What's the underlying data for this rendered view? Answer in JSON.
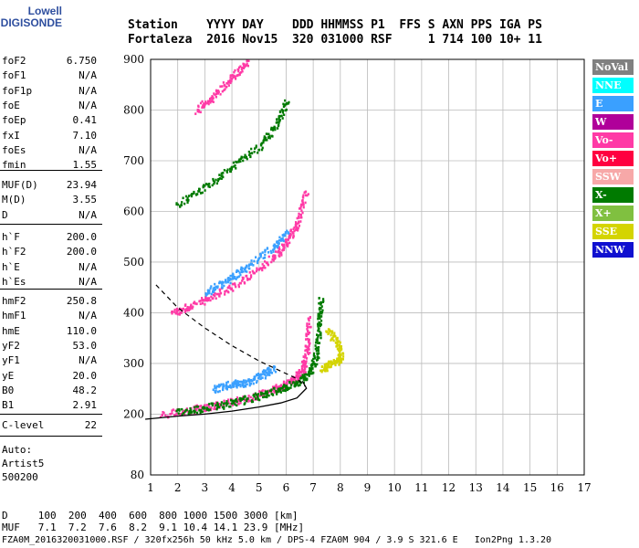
{
  "logo": {
    "line1": "Lowell",
    "line2": "DIGISONDE"
  },
  "header": {
    "line1": "Station    YYYY DAY    DDD HHMMSS P1  FFS S AXN PPS IGA PS",
    "line2": "Fortaleza  2016 Nov15  320 031000 RSF     1 714 100 10+ 11"
  },
  "left_panel": {
    "group1": [
      {
        "k": "foF2",
        "v": "6.750"
      },
      {
        "k": "foF1",
        "v": "N/A"
      },
      {
        "k": "foF1p",
        "v": "N/A"
      },
      {
        "k": "foE",
        "v": "N/A"
      },
      {
        "k": "foEp",
        "v": "0.41"
      },
      {
        "k": "fxI",
        "v": "7.10"
      },
      {
        "k": "foEs",
        "v": "N/A"
      },
      {
        "k": "fmin",
        "v": "1.55"
      }
    ],
    "group2": [
      {
        "k": "MUF(D)",
        "v": "23.94"
      },
      {
        "k": "M(D)",
        "v": "3.55"
      },
      {
        "k": "D",
        "v": "N/A"
      }
    ],
    "group3": [
      {
        "k": "h`F",
        "v": "200.0"
      },
      {
        "k": "h`F2",
        "v": "200.0"
      },
      {
        "k": "h`E",
        "v": "N/A"
      },
      {
        "k": "h`Es",
        "v": "N/A"
      }
    ],
    "group4": [
      {
        "k": "hmF2",
        "v": "250.8"
      },
      {
        "k": "hmF1",
        "v": "N/A"
      },
      {
        "k": "hmE",
        "v": "110.0"
      },
      {
        "k": "yF2",
        "v": "53.0"
      },
      {
        "k": "yF1",
        "v": "N/A"
      },
      {
        "k": "yE",
        "v": "20.0"
      },
      {
        "k": "B0",
        "v": "48.2"
      },
      {
        "k": "B1",
        "v": "2.91"
      }
    ],
    "group5": [
      {
        "k": "C-level",
        "v": "22"
      }
    ],
    "auto": "Auto:\nArtist5\n500200"
  },
  "bottom_table": {
    "d_row": "D     100  200  400  600  800 1000 1500 3000 [km]",
    "muf_row": "MUF   7.1  7.2  7.6  8.2  9.1 10.4 14.1 23.9 [MHz]"
  },
  "footer": "FZA0M_2016320031000.RSF / 320fx256h 50 kHz 5.0 km / DPS-4 FZA0M 904 / 3.9 S 321.6 E   Ion2Png 1.3.20",
  "legend": [
    {
      "label": "NoVal",
      "color": "#808080"
    },
    {
      "label": "NNE",
      "color": "#00ffff"
    },
    {
      "label": "E",
      "color": "#3aa0ff"
    },
    {
      "label": "W",
      "color": "#b0009a"
    },
    {
      "label": "Vo-",
      "color": "#ff3aa6"
    },
    {
      "label": "Vo+",
      "color": "#ff0040"
    },
    {
      "label": "SSW",
      "color": "#f7a8a8"
    },
    {
      "label": "X-",
      "color": "#007a00"
    },
    {
      "label": "X+",
      "color": "#80c040"
    },
    {
      "label": "SSE",
      "color": "#d4d400"
    },
    {
      "label": "NNW",
      "color": "#1010d0"
    }
  ],
  "chart_data": {
    "type": "scatter",
    "xlim": [
      1,
      17
    ],
    "ylim": [
      80,
      900
    ],
    "x_ticks": [
      "1",
      "2",
      "3",
      "4",
      "5",
      "6",
      "7",
      "8",
      "9",
      "10",
      "11",
      "12",
      "13",
      "14",
      "15",
      "16",
      "17"
    ],
    "y_ticks": [
      {
        "v": 80,
        "label": "80"
      },
      {
        "v": 200,
        "label": "200"
      },
      {
        "v": 300,
        "label": "300"
      },
      {
        "v": 400,
        "label": "400"
      },
      {
        "v": 500,
        "label": "500"
      },
      {
        "v": 600,
        "label": "600"
      },
      {
        "v": 700,
        "label": "700"
      },
      {
        "v": 800,
        "label": "800"
      },
      {
        "v": 900,
        "label": "900"
      }
    ],
    "echo_traces": [
      {
        "name": "O-trace",
        "color": "#ff3aa6",
        "points": [
          [
            1.4,
            200
          ],
          [
            2.5,
            210
          ],
          [
            3.5,
            220
          ],
          [
            4.5,
            232
          ],
          [
            5.5,
            250
          ],
          [
            6.0,
            262
          ],
          [
            6.4,
            275
          ],
          [
            6.6,
            292
          ],
          [
            6.75,
            330
          ],
          [
            6.8,
            390
          ]
        ]
      },
      {
        "name": "X-trace",
        "color": "#007a00",
        "points": [
          [
            2.0,
            205
          ],
          [
            3.0,
            214
          ],
          [
            4.0,
            224
          ],
          [
            5.0,
            238
          ],
          [
            5.8,
            252
          ],
          [
            6.4,
            265
          ],
          [
            6.9,
            285
          ],
          [
            7.1,
            320
          ],
          [
            7.2,
            380
          ],
          [
            7.25,
            430
          ]
        ]
      },
      {
        "name": "E-scatter",
        "color": "#3aa0ff",
        "points": [
          [
            3.3,
            250
          ],
          [
            3.9,
            262
          ],
          [
            4.4,
            262
          ],
          [
            5.0,
            276
          ],
          [
            5.5,
            292
          ]
        ]
      },
      {
        "name": "2-hop O",
        "color": "#ff3aa6",
        "points": [
          [
            1.8,
            402
          ],
          [
            2.5,
            415
          ],
          [
            3.5,
            440
          ],
          [
            4.5,
            470
          ],
          [
            5.5,
            510
          ],
          [
            6.0,
            540
          ],
          [
            6.4,
            575
          ],
          [
            6.7,
            640
          ]
        ]
      },
      {
        "name": "2-hop E",
        "color": "#3aa0ff",
        "points": [
          [
            3.0,
            440
          ],
          [
            3.8,
            465
          ],
          [
            4.5,
            490
          ],
          [
            5.5,
            530
          ],
          [
            6.0,
            560
          ]
        ]
      },
      {
        "name": "3-hop",
        "color": "#007a00",
        "points": [
          [
            2.0,
            615
          ],
          [
            3.0,
            650
          ],
          [
            4.0,
            690
          ],
          [
            5.0,
            730
          ],
          [
            5.6,
            770
          ],
          [
            6.0,
            820
          ]
        ]
      },
      {
        "name": "4-hop",
        "color": "#ff3aa6",
        "points": [
          [
            2.7,
            800
          ],
          [
            3.3,
            830
          ],
          [
            4.0,
            865
          ],
          [
            4.5,
            895
          ]
        ]
      },
      {
        "name": "spread-F",
        "color": "#d4d400",
        "points": [
          [
            7.3,
            290
          ],
          [
            7.6,
            300
          ],
          [
            8.0,
            310
          ],
          [
            7.9,
            340
          ],
          [
            7.5,
            370
          ]
        ]
      }
    ],
    "profile_solid": [
      [
        0.8,
        190
      ],
      [
        2,
        196
      ],
      [
        3,
        200
      ],
      [
        4,
        206
      ],
      [
        5,
        214
      ],
      [
        5.8,
        222
      ],
      [
        6.4,
        232
      ],
      [
        6.75,
        251
      ],
      [
        6.6,
        265
      ]
    ],
    "profile_dashed": [
      [
        1.2,
        455
      ],
      [
        2,
        410
      ],
      [
        3,
        370
      ],
      [
        4,
        335
      ],
      [
        5,
        305
      ],
      [
        5.8,
        285
      ],
      [
        6.4,
        270
      ],
      [
        6.7,
        255
      ]
    ]
  }
}
